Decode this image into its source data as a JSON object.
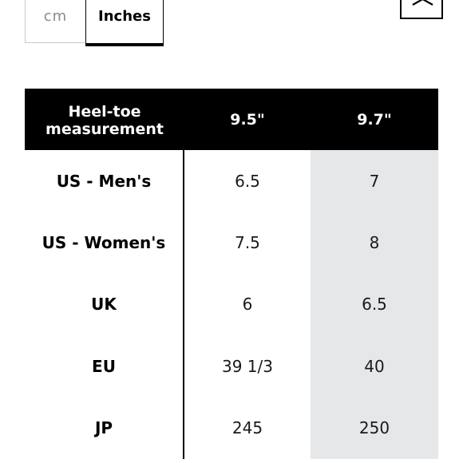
{
  "unit_toggle": {
    "cm_label": "cm",
    "inches_label": "Inches",
    "selected": "Inches"
  },
  "close_icon": "close-icon",
  "table": {
    "header": {
      "label_line1": "Heel-toe",
      "label_line2": "measurement",
      "col_a": "9.5\"",
      "col_b": "9.7\""
    },
    "rows": [
      {
        "label": "US - Men's",
        "a": "6.5",
        "b": "7"
      },
      {
        "label": "US - Women's",
        "a": "7.5",
        "b": "8"
      },
      {
        "label": "UK",
        "a": "6",
        "b": "6.5"
      },
      {
        "label": "EU",
        "a": "39 1/3",
        "b": "40"
      },
      {
        "label": "JP",
        "a": "245",
        "b": "250"
      }
    ]
  },
  "colors": {
    "header_bg": "#000000",
    "highlight_col_bg": "#e6e7e9",
    "inactive_text": "#8a8a8a"
  }
}
